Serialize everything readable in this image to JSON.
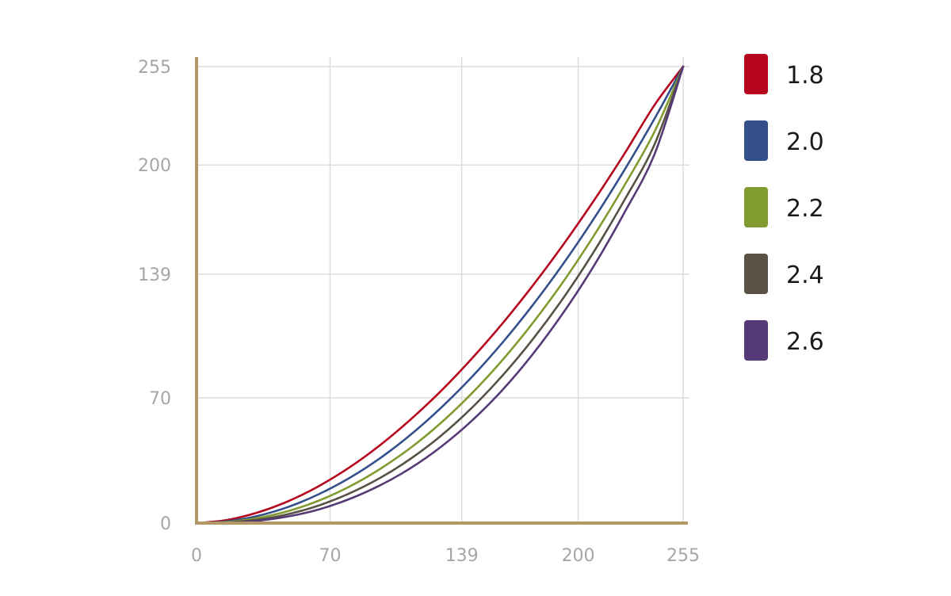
{
  "chart_data": {
    "type": "line",
    "title": "",
    "xlabel": "",
    "ylabel": "",
    "xlim": [
      0,
      255
    ],
    "ylim": [
      0,
      255
    ],
    "x_ticks": [
      0,
      70,
      139,
      200,
      255
    ],
    "y_ticks": [
      0,
      70,
      139,
      200,
      255
    ],
    "grid": true,
    "legend_position": "right",
    "axis_color": "#b29867",
    "grid_color": "#dddddd",
    "x": [
      0,
      16,
      32,
      48,
      64,
      80,
      96,
      112,
      128,
      144,
      160,
      176,
      192,
      208,
      224,
      240,
      255
    ],
    "series": [
      {
        "name": "1.8",
        "color": "#b5061d",
        "values": [
          0,
          1.7,
          5.9,
          12.2,
          20.6,
          31.0,
          43.4,
          57.7,
          73.7,
          91.6,
          111.1,
          132.4,
          155.3,
          179.8,
          205.9,
          233.5,
          255
        ]
      },
      {
        "name": "2.0",
        "color": "#34508a",
        "values": [
          0,
          1.0,
          4.0,
          9.0,
          16.1,
          25.1,
          36.1,
          49.2,
          64.3,
          81.3,
          100.4,
          121.5,
          144.6,
          169.7,
          196.8,
          225.9,
          255
        ]
      },
      {
        "name": "2.2",
        "color": "#819b30",
        "values": [
          0,
          0.6,
          2.8,
          6.7,
          12.5,
          20.3,
          30.1,
          41.9,
          55.9,
          72.2,
          90.7,
          111.5,
          134.6,
          160.2,
          188.2,
          218.6,
          255
        ]
      },
      {
        "name": "2.4",
        "color": "#585244",
        "values": [
          0,
          0.4,
          1.9,
          5.0,
          9.8,
          16.5,
          25.1,
          35.8,
          48.7,
          64.1,
          82.0,
          102.4,
          125.4,
          151.2,
          180.0,
          211.5,
          255
        ]
      },
      {
        "name": "2.6",
        "color": "#563a77",
        "values": [
          0,
          0.2,
          1.3,
          3.7,
          7.6,
          13.4,
          21.0,
          30.6,
          42.5,
          56.9,
          74.0,
          94.1,
          117.2,
          143.3,
          173.0,
          206.0,
          255
        ]
      }
    ]
  }
}
